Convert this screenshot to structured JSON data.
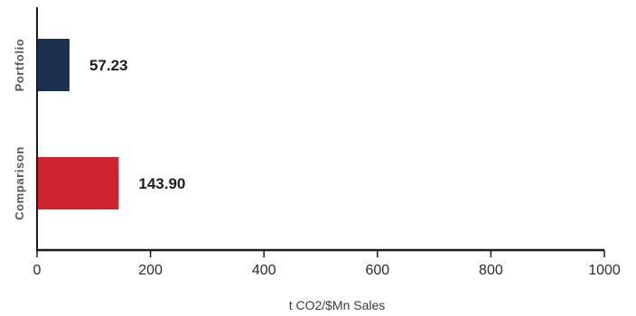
{
  "chart_data": {
    "type": "bar",
    "orientation": "horizontal",
    "categories": [
      "Portfolio",
      "Comparison"
    ],
    "values": [
      57.23,
      143.9
    ],
    "value_labels": [
      "57.23",
      "143.90"
    ],
    "colors": [
      "#1b2f4f",
      "#d12232"
    ],
    "xlabel": "t CO2/$Mn Sales",
    "xlim": [
      0,
      1000
    ],
    "xticks": [
      0,
      200,
      400,
      600,
      800,
      1000
    ],
    "grid": false
  }
}
